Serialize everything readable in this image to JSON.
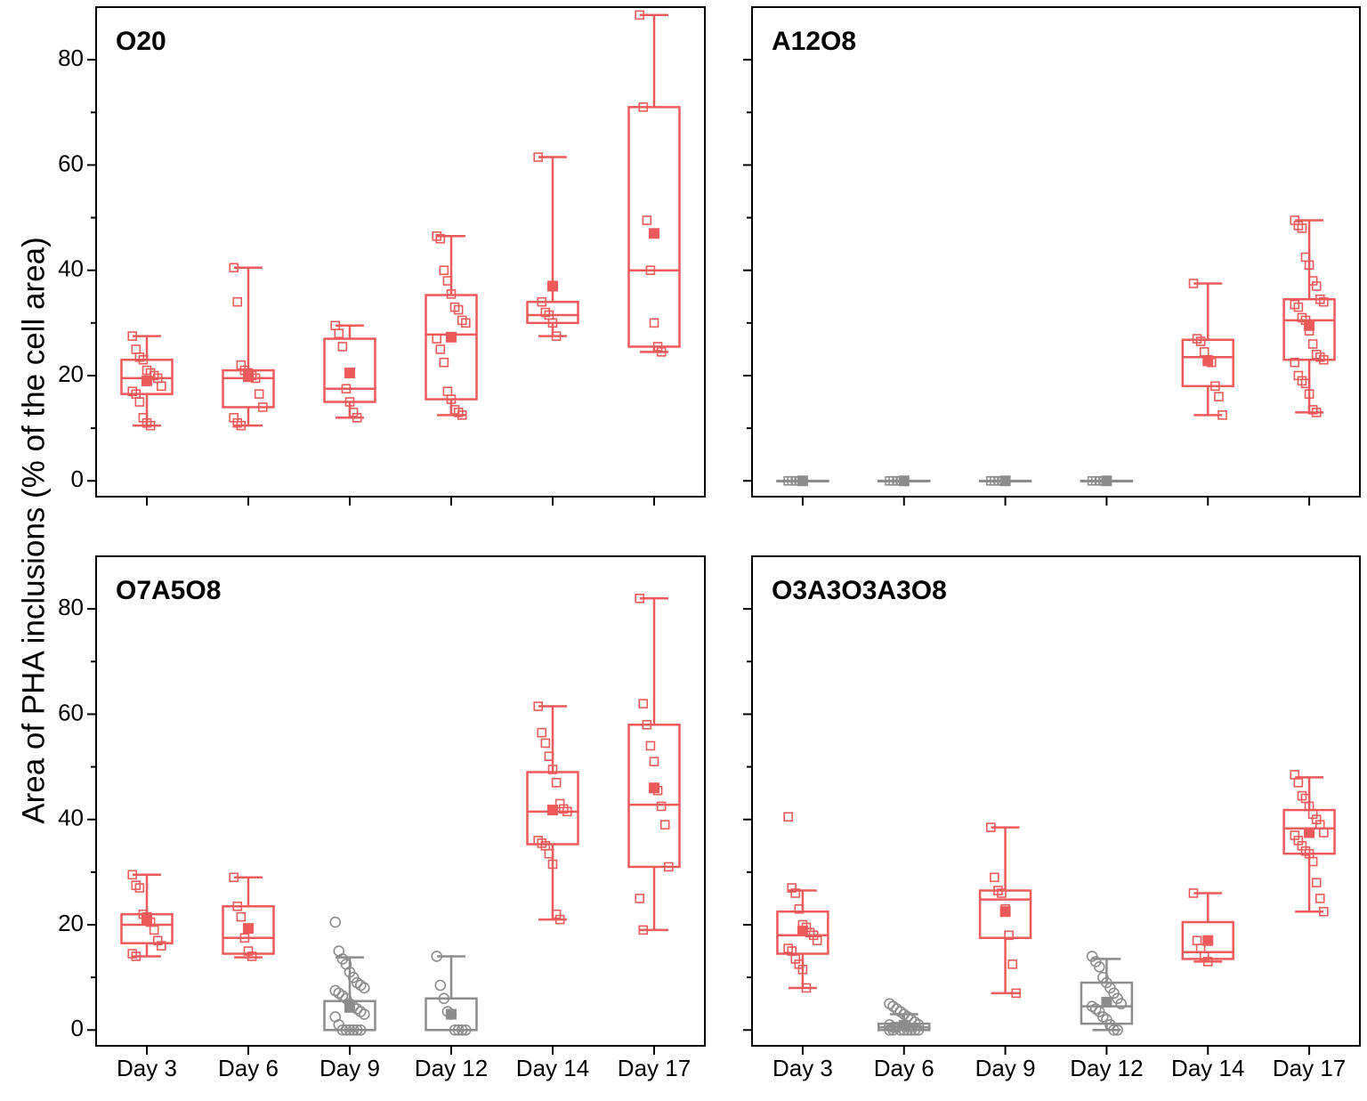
{
  "ylabel": "Area of PHA inclusions (% of the cell area)",
  "colors": {
    "red": "#ee5a5a",
    "gray": "#8c8c8c",
    "axis": "#000000"
  },
  "chart_data": [
    {
      "type": "box",
      "title": "O20",
      "categories": [
        "Day 3",
        "Day 6",
        "Day 9",
        "Day 12",
        "Day 14",
        "Day 17"
      ],
      "ylim": [
        -3,
        90
      ],
      "yticks": [
        0,
        20,
        40,
        60,
        80
      ],
      "boxes": [
        {
          "color": "red",
          "marker": "square",
          "q1": 16.5,
          "median": 19.5,
          "q3": 23.0,
          "whisker_low": 10.5,
          "whisker_high": 27.5,
          "mean": 19.0,
          "points": [
            27.5,
            25,
            23.5,
            23,
            21,
            20.5,
            20,
            19.5,
            18,
            17,
            16.5,
            15,
            12,
            11,
            10.5
          ]
        },
        {
          "color": "red",
          "marker": "square",
          "q1": 14.0,
          "median": 19.5,
          "q3": 21.0,
          "whisker_low": 10.5,
          "whisker_high": 40.5,
          "mean": 19.8,
          "points": [
            40.5,
            34,
            22,
            21,
            20.5,
            20,
            19.5,
            16.5,
            14,
            12,
            11,
            10.5
          ]
        },
        {
          "color": "red",
          "marker": "square",
          "q1": 15.0,
          "median": 17.5,
          "q3": 27.0,
          "whisker_low": 12.0,
          "whisker_high": 29.5,
          "mean": 20.5,
          "points": [
            29.5,
            28,
            25.5,
            17.5,
            15,
            13,
            12
          ]
        },
        {
          "color": "red",
          "marker": "square",
          "q1": 15.5,
          "median": 27.8,
          "q3": 35.3,
          "whisker_low": 12.5,
          "whisker_high": 46.5,
          "mean": 27.3,
          "points": [
            46.5,
            46,
            40,
            38,
            35.5,
            33,
            32.5,
            30.5,
            30,
            27,
            25,
            22.5,
            17,
            15.5,
            13.5,
            13,
            12.5
          ]
        },
        {
          "color": "red",
          "marker": "square",
          "q1": 30.0,
          "median": 31.5,
          "q3": 34.0,
          "whisker_low": 27.5,
          "whisker_high": 61.5,
          "mean": 37.0,
          "points": [
            61.5,
            34,
            32,
            31.5,
            30,
            27.5
          ]
        },
        {
          "color": "red",
          "marker": "square",
          "q1": 25.5,
          "median": 40.0,
          "q3": 71.0,
          "whisker_low": 24.5,
          "whisker_high": 88.5,
          "mean": 47.0,
          "points": [
            88.5,
            71,
            49.5,
            40,
            30,
            25.5,
            24.5
          ]
        }
      ]
    },
    {
      "type": "box",
      "title": "A12O8",
      "categories": [
        "Day 3",
        "Day 6",
        "Day 9",
        "Day 12",
        "Day 14",
        "Day 17"
      ],
      "ylim": [
        -3,
        90
      ],
      "yticks": [
        0,
        20,
        40,
        60,
        80
      ],
      "boxes": [
        {
          "color": "gray",
          "marker": "square",
          "q1": 0,
          "median": 0,
          "q3": 0,
          "whisker_low": 0,
          "whisker_high": 0,
          "mean": 0,
          "points": [
            0,
            0,
            0,
            0,
            0
          ]
        },
        {
          "color": "gray",
          "marker": "square",
          "q1": 0,
          "median": 0,
          "q3": 0,
          "whisker_low": 0,
          "whisker_high": 0,
          "mean": 0,
          "points": [
            0,
            0,
            0,
            0
          ]
        },
        {
          "color": "gray",
          "marker": "square",
          "q1": 0,
          "median": 0,
          "q3": 0,
          "whisker_low": 0,
          "whisker_high": 0,
          "mean": 0,
          "points": [
            0,
            0,
            0,
            0
          ]
        },
        {
          "color": "gray",
          "marker": "square",
          "q1": 0,
          "median": 0,
          "q3": 0,
          "whisker_low": 0,
          "whisker_high": 0,
          "mean": 0,
          "points": [
            0,
            0,
            0,
            0,
            0
          ]
        },
        {
          "color": "red",
          "marker": "square",
          "q1": 18.0,
          "median": 23.5,
          "q3": 26.8,
          "whisker_low": 12.5,
          "whisker_high": 37.5,
          "mean": 22.8,
          "points": [
            37.5,
            27,
            26.5,
            24.5,
            23,
            22.5,
            18,
            16,
            12.5
          ]
        },
        {
          "color": "red",
          "marker": "square",
          "q1": 23.0,
          "median": 30.5,
          "q3": 34.5,
          "whisker_low": 13.0,
          "whisker_high": 49.5,
          "mean": 29.5,
          "points": [
            49.5,
            48.5,
            48,
            42.5,
            41,
            38,
            37,
            34.5,
            34,
            33.5,
            33,
            31,
            30.5,
            28.5,
            26,
            24,
            23.5,
            23,
            22.5,
            20,
            19,
            18.5,
            16.5,
            13.5,
            13
          ]
        }
      ]
    },
    {
      "type": "box",
      "title": "O7A5O8",
      "categories": [
        "Day 3",
        "Day 6",
        "Day 9",
        "Day 12",
        "Day 14",
        "Day 17"
      ],
      "ylim": [
        -3,
        90
      ],
      "yticks": [
        0,
        20,
        40,
        60,
        80
      ],
      "boxes": [
        {
          "color": "red",
          "marker": "square",
          "q1": 16.5,
          "median": 20.0,
          "q3": 22.0,
          "whisker_low": 14.0,
          "whisker_high": 29.5,
          "mean": 21.0,
          "points": [
            29.5,
            27.5,
            27,
            22,
            21.5,
            20.5,
            19,
            17,
            16,
            14.5,
            14
          ]
        },
        {
          "color": "red",
          "marker": "square",
          "q1": 14.5,
          "median": 17.5,
          "q3": 23.5,
          "whisker_low": 13.8,
          "whisker_high": 29.0,
          "mean": 19.3,
          "points": [
            29,
            23.5,
            21.5,
            17.5,
            15,
            14
          ]
        },
        {
          "color": "gray",
          "marker": "circle",
          "q1": 0,
          "median": 0,
          "q3": 5.5,
          "whisker_low": 0,
          "whisker_high": 13.8,
          "mean": 4.3,
          "points": [
            20.5,
            15,
            13.5,
            12.5,
            11,
            10,
            9,
            8.5,
            8,
            7.5,
            7,
            6.5,
            6,
            5,
            4.5,
            4,
            3.5,
            3,
            2.5,
            1,
            0,
            0,
            0,
            0,
            0,
            0
          ]
        },
        {
          "color": "gray",
          "marker": "circle",
          "q1": 0,
          "median": 0,
          "q3": 6.0,
          "whisker_low": 0,
          "whisker_high": 14.0,
          "mean": 3.0,
          "points": [
            14,
            8.5,
            6,
            3.5,
            3,
            0,
            0,
            0,
            0
          ]
        },
        {
          "color": "red",
          "marker": "square",
          "q1": 35.3,
          "median": 41.5,
          "q3": 49.0,
          "whisker_low": 21.0,
          "whisker_high": 61.5,
          "mean": 41.8,
          "points": [
            61.5,
            56.5,
            54.5,
            52,
            49.5,
            47,
            43,
            42,
            41.5,
            36,
            35.5,
            35,
            33.5,
            31.5,
            22,
            21
          ]
        },
        {
          "color": "red",
          "marker": "square",
          "q1": 31.0,
          "median": 42.8,
          "q3": 58.0,
          "whisker_low": 19.0,
          "whisker_high": 82.0,
          "mean": 46.0,
          "points": [
            82,
            62,
            58,
            54,
            51,
            45.5,
            42.5,
            39,
            31,
            25,
            19
          ]
        }
      ]
    },
    {
      "type": "box",
      "title": "O3A3O3A3O8",
      "categories": [
        "Day 3",
        "Day 6",
        "Day 9",
        "Day 12",
        "Day 14",
        "Day 17"
      ],
      "ylim": [
        -3,
        90
      ],
      "yticks": [
        0,
        20,
        40,
        60,
        80
      ],
      "boxes": [
        {
          "color": "red",
          "marker": "square",
          "q1": 14.5,
          "median": 18.0,
          "q3": 22.5,
          "whisker_low": 8.0,
          "whisker_high": 26.5,
          "mean": 18.8,
          "points": [
            40.5,
            27,
            26,
            23,
            20,
            19.5,
            18.5,
            18,
            17,
            15.5,
            15,
            13.5,
            12.5,
            11.5,
            8
          ]
        },
        {
          "color": "gray",
          "marker": "circle",
          "q1": 0,
          "median": 0.5,
          "q3": 1.2,
          "whisker_low": 0,
          "whisker_high": 3.0,
          "mean": 0.9,
          "points": [
            5,
            4.5,
            4,
            3.5,
            3,
            2.5,
            2,
            1.5,
            1,
            1,
            0.5,
            0.5,
            0,
            0,
            0,
            0,
            0,
            0,
            0,
            0
          ]
        },
        {
          "color": "red",
          "marker": "square",
          "q1": 17.5,
          "median": 24.8,
          "q3": 26.5,
          "whisker_low": 7.0,
          "whisker_high": 38.5,
          "mean": 22.5,
          "points": [
            38.5,
            29,
            26.5,
            26,
            23,
            18,
            12.5,
            7
          ]
        },
        {
          "color": "gray",
          "marker": "circle",
          "q1": 1.2,
          "median": 4.5,
          "q3": 9.0,
          "whisker_low": 0,
          "whisker_high": 13.5,
          "mean": 5.3,
          "points": [
            14,
            13,
            12,
            10,
            9,
            8,
            7,
            6,
            5,
            4.5,
            4,
            3.5,
            2.5,
            2,
            1,
            0,
            0
          ]
        },
        {
          "color": "red",
          "marker": "square",
          "q1": 13.5,
          "median": 14.8,
          "q3": 20.5,
          "whisker_low": 13.0,
          "whisker_high": 26.0,
          "mean": 17.0,
          "points": [
            26,
            17,
            15.5,
            14,
            13
          ]
        },
        {
          "color": "red",
          "marker": "square",
          "q1": 33.5,
          "median": 38.3,
          "q3": 41.8,
          "whisker_low": 22.5,
          "whisker_high": 48.0,
          "mean": 37.5,
          "points": [
            48.5,
            47,
            44.5,
            44,
            42.5,
            41,
            40,
            39,
            37.5,
            37,
            36,
            35,
            34,
            33.5,
            32,
            28,
            25,
            22.5
          ]
        }
      ]
    }
  ]
}
